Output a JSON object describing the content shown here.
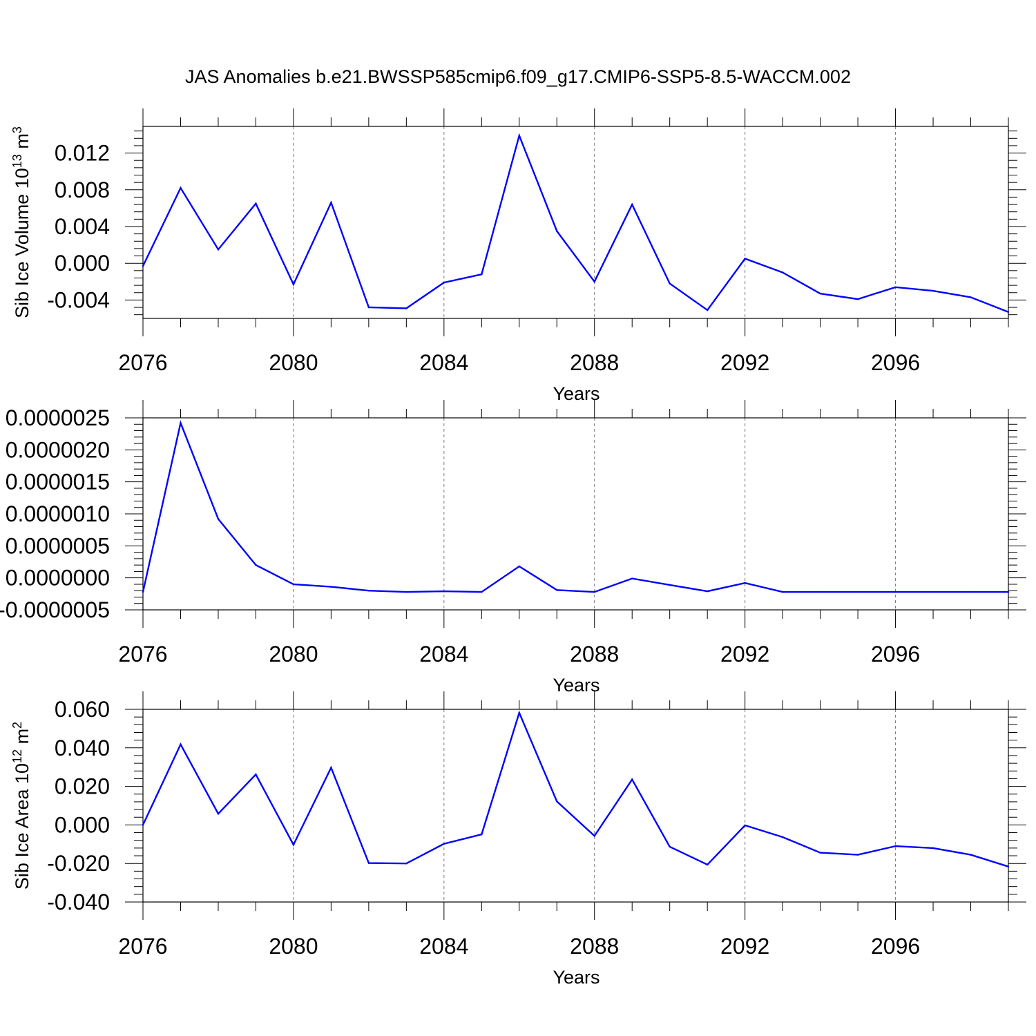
{
  "title": "JAS Anomalies b.e21.BWSSP585cmip6.f09_g17.CMIP6-SSP5-8.5-WACCM.002",
  "colors": {
    "line": "#0000ff",
    "grid": "#777777"
  },
  "chart_data": [
    {
      "type": "line",
      "ylabel": "Sib Ice Volume 10",
      "ylabel_exp": "13",
      "ylabel_unit": "m",
      "ylabel_unit_exp": "3",
      "xlabel": "Years",
      "xlim": [
        2076,
        2099
      ],
      "ylim": [
        -0.006,
        0.0149
      ],
      "xticks": [
        2076,
        2080,
        2084,
        2088,
        2092,
        2096
      ],
      "xtick_labels": [
        "2076",
        "2080",
        "2084",
        "2088",
        "2092",
        "2096"
      ],
      "yticks": [
        -0.004,
        0.0,
        0.004,
        0.008,
        0.012
      ],
      "ytick_labels": [
        "-0.004",
        "0.000",
        "0.004",
        "0.008",
        "0.012"
      ],
      "grid_x": true,
      "x": [
        2076,
        2077,
        2078,
        2079,
        2080,
        2081,
        2082,
        2083,
        2084,
        2085,
        2086,
        2087,
        2088,
        2089,
        2090,
        2091,
        2092,
        2093,
        2094,
        2095,
        2096,
        2097,
        2098,
        2099
      ],
      "series": [
        {
          "values": [
            -0.0003,
            0.0082,
            0.0015,
            0.0065,
            -0.0023,
            0.0066,
            -0.0048,
            -0.0049,
            -0.0021,
            -0.0012,
            0.0139,
            0.0035,
            -0.002,
            0.0064,
            -0.0022,
            -0.0051,
            0.0005,
            -0.001,
            -0.0033,
            -0.0039,
            -0.0026,
            -0.003,
            -0.0037,
            -0.0053
          ]
        }
      ]
    },
    {
      "type": "line",
      "ylabel": "",
      "xlabel": "Years",
      "xlim": [
        2076,
        2099
      ],
      "ylim": [
        -5e-07,
        2.5e-06
      ],
      "xticks": [
        2076,
        2080,
        2084,
        2088,
        2092,
        2096
      ],
      "xtick_labels": [
        "2076",
        "2080",
        "2084",
        "2088",
        "2092",
        "2096"
      ],
      "yticks": [
        -5e-07,
        0.0,
        5e-07,
        1e-06,
        1.5e-06,
        2e-06,
        2.5e-06
      ],
      "ytick_labels": [
        "-0.0000005",
        "0.0000000",
        "0.0000005",
        "0.0000010",
        "0.0000015",
        "0.0000020",
        "0.0000025"
      ],
      "grid_x": true,
      "x": [
        2076,
        2077,
        2078,
        2079,
        2080,
        2081,
        2082,
        2083,
        2084,
        2085,
        2086,
        2087,
        2088,
        2089,
        2090,
        2091,
        2092,
        2093,
        2094,
        2095,
        2096,
        2097,
        2098,
        2099
      ],
      "series": [
        {
          "values": [
            -2.2e-07,
            2.42e-06,
            9.2e-07,
            2e-07,
            -1e-07,
            -1.4e-07,
            -2e-07,
            -2.2e-07,
            -2.1e-07,
            -2.2e-07,
            1.8e-07,
            -1.9e-07,
            -2.2e-07,
            -1e-08,
            -1.1e-07,
            -2.1e-07,
            -8e-08,
            -2.2e-07,
            -2.2e-07,
            -2.2e-07,
            -2.2e-07,
            -2.2e-07,
            -2.2e-07,
            -2.2e-07
          ]
        }
      ]
    },
    {
      "type": "line",
      "ylabel": "Sib Ice Area 10",
      "ylabel_exp": "12",
      "ylabel_unit": "m",
      "ylabel_unit_exp": "2",
      "xlabel": "Years",
      "xlim": [
        2076,
        2099
      ],
      "ylim": [
        -0.04,
        0.06
      ],
      "xticks": [
        2076,
        2080,
        2084,
        2088,
        2092,
        2096
      ],
      "xtick_labels": [
        "2076",
        "2080",
        "2084",
        "2088",
        "2092",
        "2096"
      ],
      "yticks": [
        -0.04,
        -0.02,
        0.0,
        0.02,
        0.04,
        0.06
      ],
      "ytick_labels": [
        "-0.040",
        "-0.020",
        "0.000",
        "0.020",
        "0.040",
        "0.060"
      ],
      "grid_x": true,
      "x": [
        2076,
        2077,
        2078,
        2079,
        2080,
        2081,
        2082,
        2083,
        2084,
        2085,
        2086,
        2087,
        2088,
        2089,
        2090,
        2091,
        2092,
        2093,
        2094,
        2095,
        2096,
        2097,
        2098,
        2099
      ],
      "series": [
        {
          "values": [
            0.0,
            0.0418,
            0.0058,
            0.0262,
            -0.0103,
            0.0297,
            -0.0198,
            -0.02,
            -0.0098,
            -0.0049,
            0.0582,
            0.0122,
            -0.0057,
            0.0236,
            -0.0113,
            -0.0206,
            -0.0002,
            -0.0063,
            -0.0144,
            -0.0155,
            -0.011,
            -0.012,
            -0.0155,
            -0.0216
          ]
        }
      ]
    }
  ]
}
